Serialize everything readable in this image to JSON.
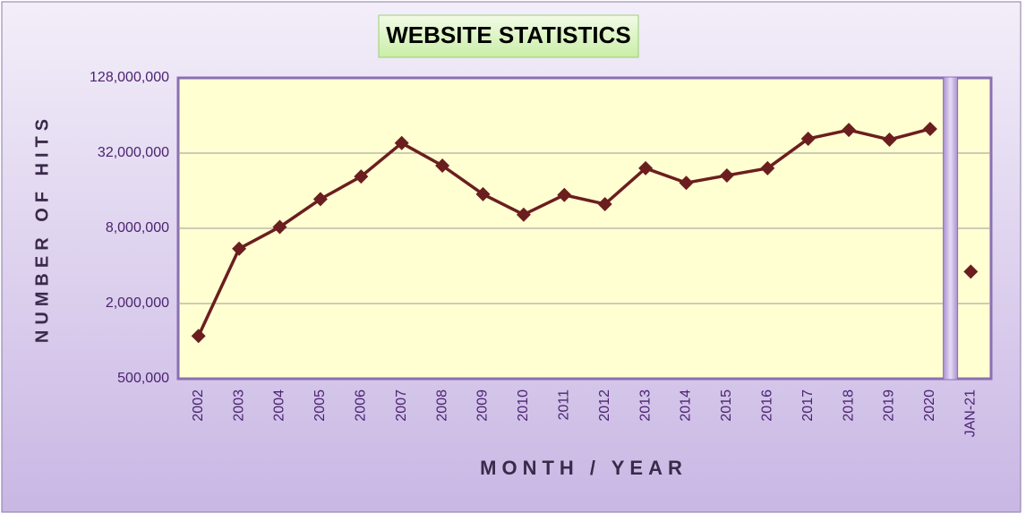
{
  "chart_data": {
    "type": "line",
    "title": "WEBSITE STATISTICS",
    "x_label": "MONTH / YEAR",
    "y_label": "NUMBER OF HITS",
    "categories": [
      "2002",
      "2003",
      "2004",
      "2005",
      "2006",
      "2007",
      "2008",
      "2009",
      "2010",
      "2011",
      "2012",
      "2013",
      "2014",
      "2015",
      "2016",
      "2017",
      "2018",
      "2019",
      "2020",
      "JAN-21"
    ],
    "values": [
      1100000,
      5500000,
      8200000,
      13700000,
      20800000,
      38500000,
      25400000,
      15000000,
      10300000,
      14800000,
      12500000,
      24200000,
      18500000,
      21200000,
      24200000,
      41700000,
      49000000,
      41000000,
      50000000,
      3600000
    ],
    "color": "#6b1e1e",
    "log_scale": true,
    "separator": true,
    "ylim": [
      500000,
      128000000
    ],
    "yticks": [
      {
        "value": 500000,
        "label": "500,000"
      },
      {
        "value": 2000000,
        "label": "2,000,000"
      },
      {
        "value": 8000000,
        "label": "8,000,000"
      },
      {
        "value": 32000000,
        "label": "32,000,000"
      },
      {
        "value": 128000000,
        "label": "128,000,000"
      }
    ],
    "grid": true
  }
}
